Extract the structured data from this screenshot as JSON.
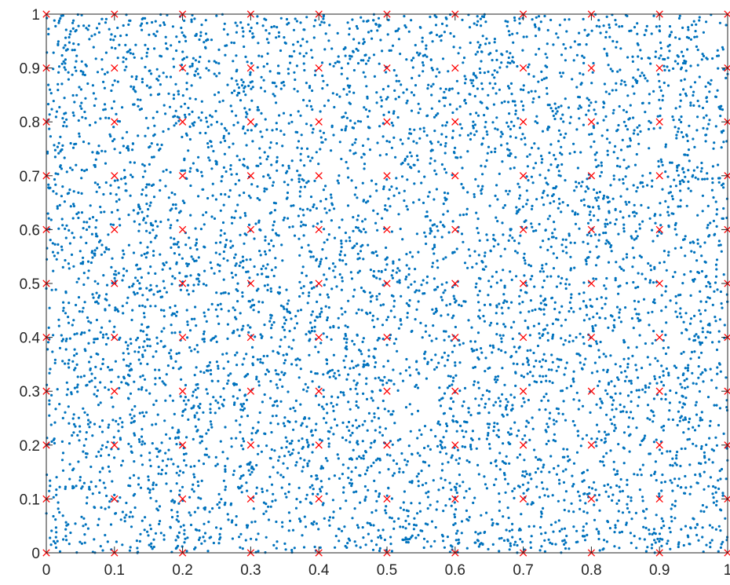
{
  "chart_data": {
    "type": "scatter",
    "title": "",
    "xlabel": "",
    "ylabel": "",
    "xlim": [
      0,
      1
    ],
    "ylim": [
      0,
      1
    ],
    "x_ticks": [
      "0",
      "0.1",
      "0.2",
      "0.3",
      "0.4",
      "0.5",
      "0.6",
      "0.7",
      "0.8",
      "0.9",
      "1"
    ],
    "y_ticks": [
      "0",
      "0.1",
      "0.2",
      "0.3",
      "0.4",
      "0.5",
      "0.6",
      "0.7",
      "0.8",
      "0.9",
      "1"
    ],
    "grid": false,
    "legend": "none",
    "series": [
      {
        "marker": "dot",
        "color": "#0072BD",
        "distribution": "uniform random over [0,1]x[0,1]",
        "approx_count": 9000
      },
      {
        "marker": "x",
        "color": "#FF0000",
        "x": [
          0,
          0.1,
          0.2,
          0.3,
          0.4,
          0.5,
          0.6,
          0.7,
          0.8,
          0.9,
          1
        ],
        "y": [
          0,
          0.1,
          0.2,
          0.3,
          0.4,
          0.5,
          0.6,
          0.7,
          0.8,
          0.9,
          1
        ],
        "layout": "grid"
      }
    ]
  }
}
